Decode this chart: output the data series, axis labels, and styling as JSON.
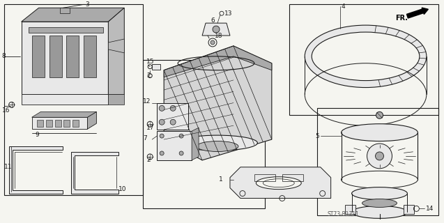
{
  "bg_color": "#f5f5f0",
  "line_color": "#1a1a1a",
  "diagram_code": "ST73-B1711",
  "fr_label": "FR.",
  "figsize": [
    6.37,
    3.2
  ],
  "dpi": 100,
  "border_color": "#444444",
  "gray_fill": "#cccccc",
  "light_gray": "#e8e8e8",
  "mid_gray": "#aaaaaa"
}
